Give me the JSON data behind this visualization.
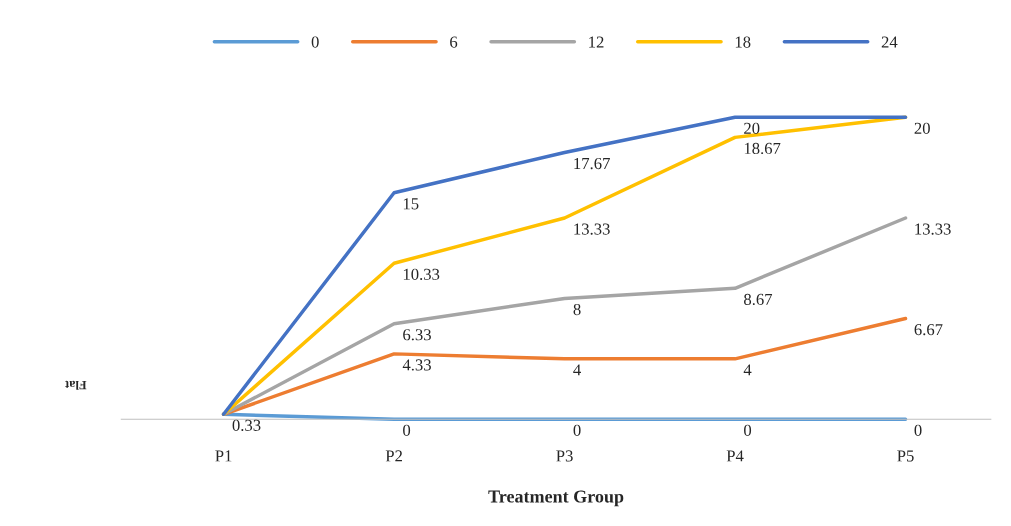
{
  "chart_data": {
    "type": "line",
    "xlabel": "Treatment Group",
    "categories": [
      "P1",
      "P2",
      "P3",
      "P4",
      "P5"
    ],
    "series": [
      {
        "name": "0",
        "color": "#5b9bd5",
        "values": [
          0.33,
          0,
          0,
          0,
          0
        ],
        "value_labels": [
          "0.33",
          "0",
          "0",
          "0",
          "0"
        ]
      },
      {
        "name": "6",
        "color": "#ed7d31",
        "values": [
          0.33,
          4.33,
          4,
          4,
          6.67
        ],
        "value_labels": [
          null,
          "4.33",
          "4",
          "4",
          "6.67"
        ]
      },
      {
        "name": "12",
        "color": "#a5a5a5",
        "values": [
          0.33,
          6.33,
          8,
          8.67,
          13.33
        ],
        "value_labels": [
          null,
          "6.33",
          "8",
          "8.67",
          "13.33"
        ]
      },
      {
        "name": "18",
        "color": "#ffc000",
        "values": [
          0.33,
          10.33,
          13.33,
          18.67,
          20
        ],
        "value_labels": [
          null,
          "10.33",
          "13.33",
          "18.67",
          null
        ]
      },
      {
        "name": "24",
        "color": "#4472c4",
        "values": [
          0.33,
          15,
          17.67,
          20,
          20
        ],
        "value_labels": [
          null,
          "15",
          "17.67",
          "20",
          "20"
        ]
      }
    ],
    "tick_labels": "x",
    "legend": "top",
    "grid": false,
    "marker": "none",
    "line_style": "solid",
    "annotations": [
      "Flat"
    ]
  }
}
